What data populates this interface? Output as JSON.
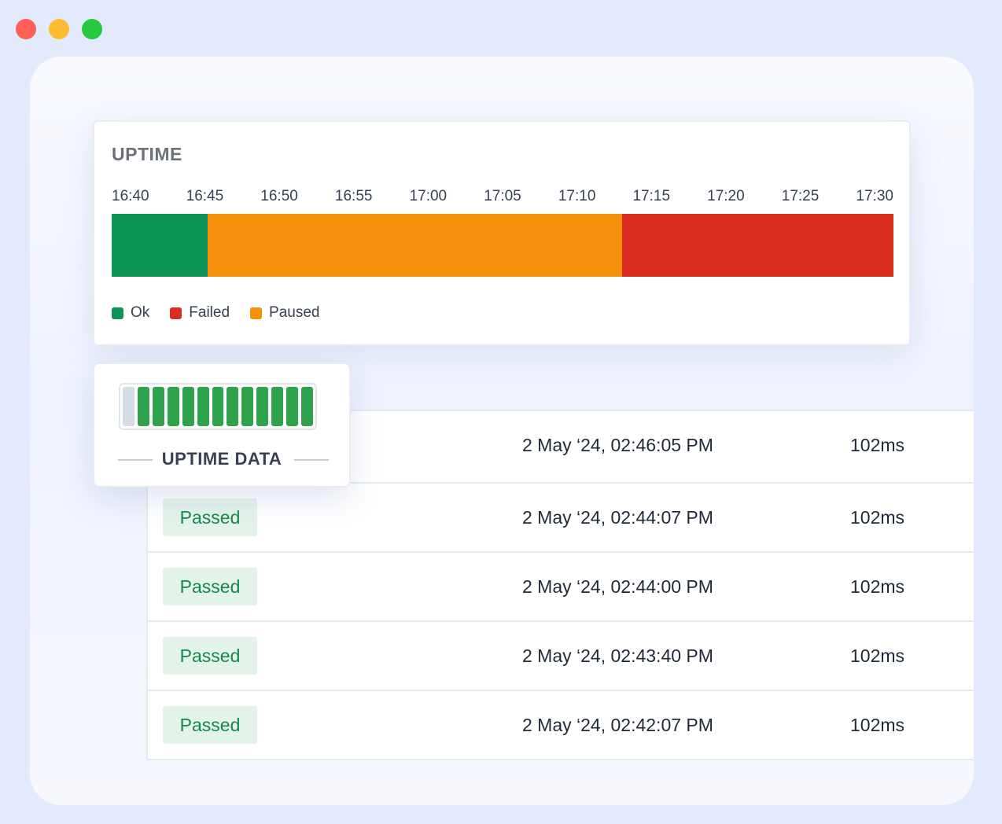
{
  "uptime": {
    "title": "UPTIME",
    "ticks": [
      "16:40",
      "16:45",
      "16:50",
      "16:55",
      "17:00",
      "17:05",
      "17:10",
      "17:15",
      "17:20",
      "17:25",
      "17:30"
    ],
    "legend": [
      {
        "label": "Ok",
        "color": "#0b9455"
      },
      {
        "label": "Failed",
        "color": "#d92d20"
      },
      {
        "label": "Paused",
        "color": "#f5900b"
      }
    ],
    "segments": [
      {
        "status": "Ok",
        "minutes": 6.5
      },
      {
        "status": "Paused",
        "minutes": 28
      },
      {
        "status": "Failed",
        "minutes": 18.3
      }
    ]
  },
  "widget": {
    "label": "UPTIME DATA"
  },
  "table": {
    "rows": [
      {
        "status": null,
        "time": "2 May ‘24, 02:46:05 PM",
        "latency": "102ms"
      },
      {
        "status": "Passed",
        "time": "2 May ‘24, 02:44:07 PM",
        "latency": "102ms"
      },
      {
        "status": "Passed",
        "time": "2 May ‘24, 02:44:00 PM",
        "latency": "102ms"
      },
      {
        "status": "Passed",
        "time": "2 May ‘24, 02:43:40 PM",
        "latency": "102ms"
      },
      {
        "status": "Passed",
        "time": "2 May ‘24, 02:42:07 PM",
        "latency": "102ms"
      }
    ]
  }
}
